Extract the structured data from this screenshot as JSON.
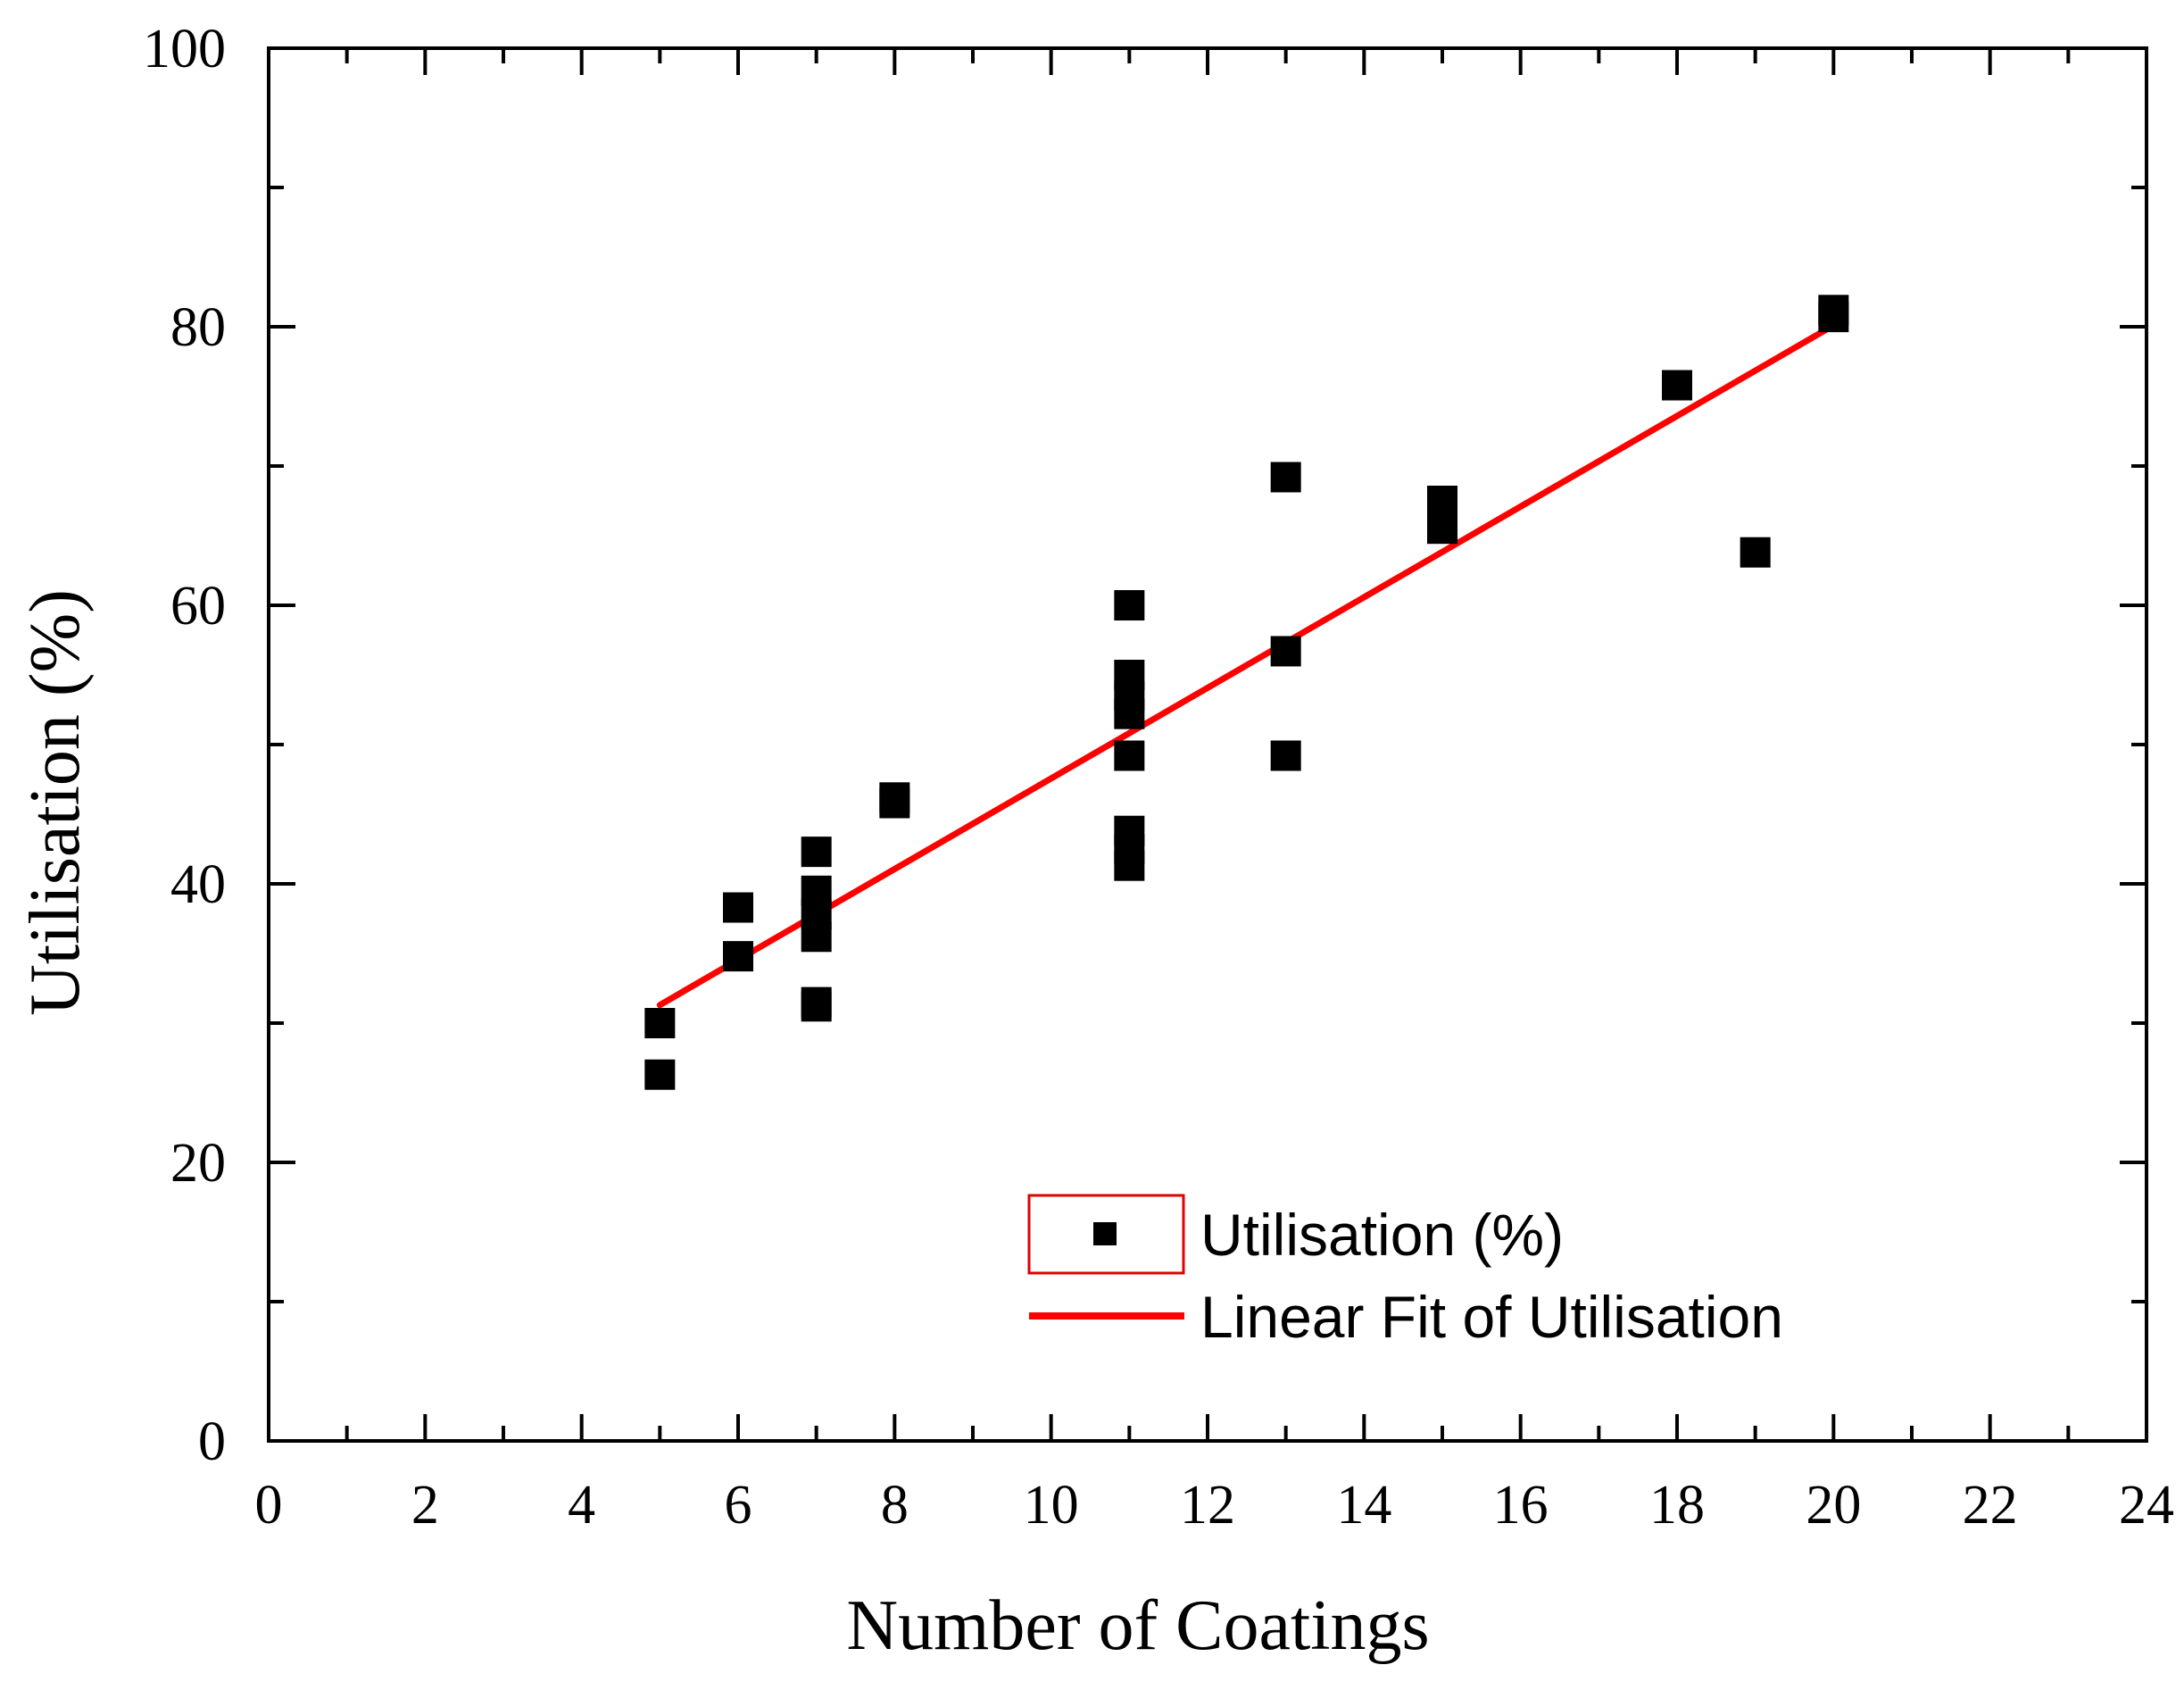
{
  "chart_data": {
    "type": "scatter",
    "title": "",
    "xlabel": "Number of Coatings",
    "ylabel": "Utilisation (%)",
    "xlim": [
      0,
      24
    ],
    "ylim": [
      0,
      100
    ],
    "x_ticks": [
      0,
      2,
      4,
      6,
      8,
      10,
      12,
      14,
      16,
      18,
      20,
      22,
      24
    ],
    "y_ticks": [
      0,
      20,
      40,
      60,
      80,
      100
    ],
    "x_tick_labels": [
      "0",
      "2",
      "4",
      "6",
      "8",
      "10",
      "12",
      "14",
      "16",
      "18",
      "20",
      "22",
      "24"
    ],
    "y_tick_labels": [
      "0",
      "20",
      "40",
      "60",
      "80",
      "100"
    ],
    "legend_position": "bottom-right",
    "series": [
      {
        "name": "Utilisation (%)",
        "kind": "scatter",
        "color": "#000000",
        "points": [
          [
            5,
            30
          ],
          [
            5,
            26.3
          ],
          [
            6,
            38.3
          ],
          [
            6,
            34.8
          ],
          [
            7,
            42.3
          ],
          [
            7,
            39.5
          ],
          [
            7,
            37.8
          ],
          [
            7,
            36.2
          ],
          [
            7,
            31.2
          ],
          [
            7,
            31.5
          ],
          [
            8,
            46.2
          ],
          [
            8,
            45.8
          ],
          [
            11,
            60
          ],
          [
            11,
            55
          ],
          [
            11,
            53.5
          ],
          [
            11,
            52.2
          ],
          [
            11,
            49.2
          ],
          [
            11,
            43.8
          ],
          [
            11,
            42.5
          ],
          [
            11,
            41.3
          ],
          [
            13,
            69.2
          ],
          [
            13,
            56.7
          ],
          [
            13,
            49.2
          ],
          [
            15,
            67.5
          ],
          [
            15,
            66.2
          ],
          [
            15,
            65.5
          ],
          [
            18,
            75.8
          ],
          [
            19,
            63.8
          ],
          [
            20,
            81.2
          ],
          [
            20,
            80.7
          ]
        ]
      },
      {
        "name": "Linear Fit of Utilisation",
        "kind": "line",
        "color": "#ff0000",
        "x": [
          5,
          20
        ],
        "y": [
          31.3,
          80.1
        ]
      }
    ]
  }
}
